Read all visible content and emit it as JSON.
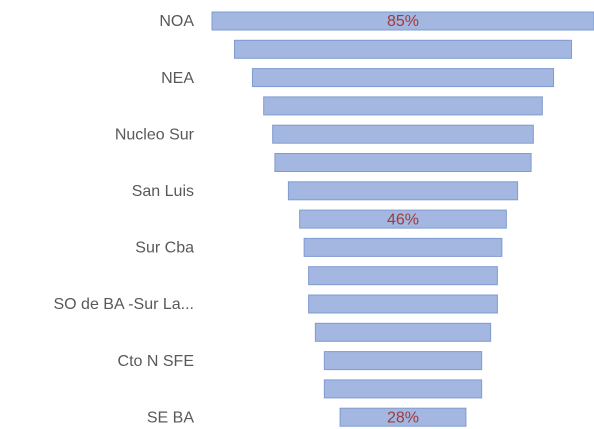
{
  "chart_data": {
    "type": "funnel",
    "categories": [
      "NOA",
      null,
      "NEA",
      null,
      "Nucleo Sur",
      null,
      "San Luis",
      null,
      "Sur Cba",
      null,
      "SO de BA -Sur La...",
      null,
      "Cto N SFE",
      null,
      "SE BA"
    ],
    "values": [
      85,
      75,
      67,
      62,
      58,
      57,
      51,
      46,
      44,
      42,
      42,
      39,
      35,
      35,
      28
    ],
    "value_labels": [
      "85%",
      null,
      null,
      null,
      null,
      null,
      null,
      "46%",
      null,
      null,
      null,
      null,
      null,
      null,
      "28%"
    ],
    "color": "#a3b7e0"
  }
}
